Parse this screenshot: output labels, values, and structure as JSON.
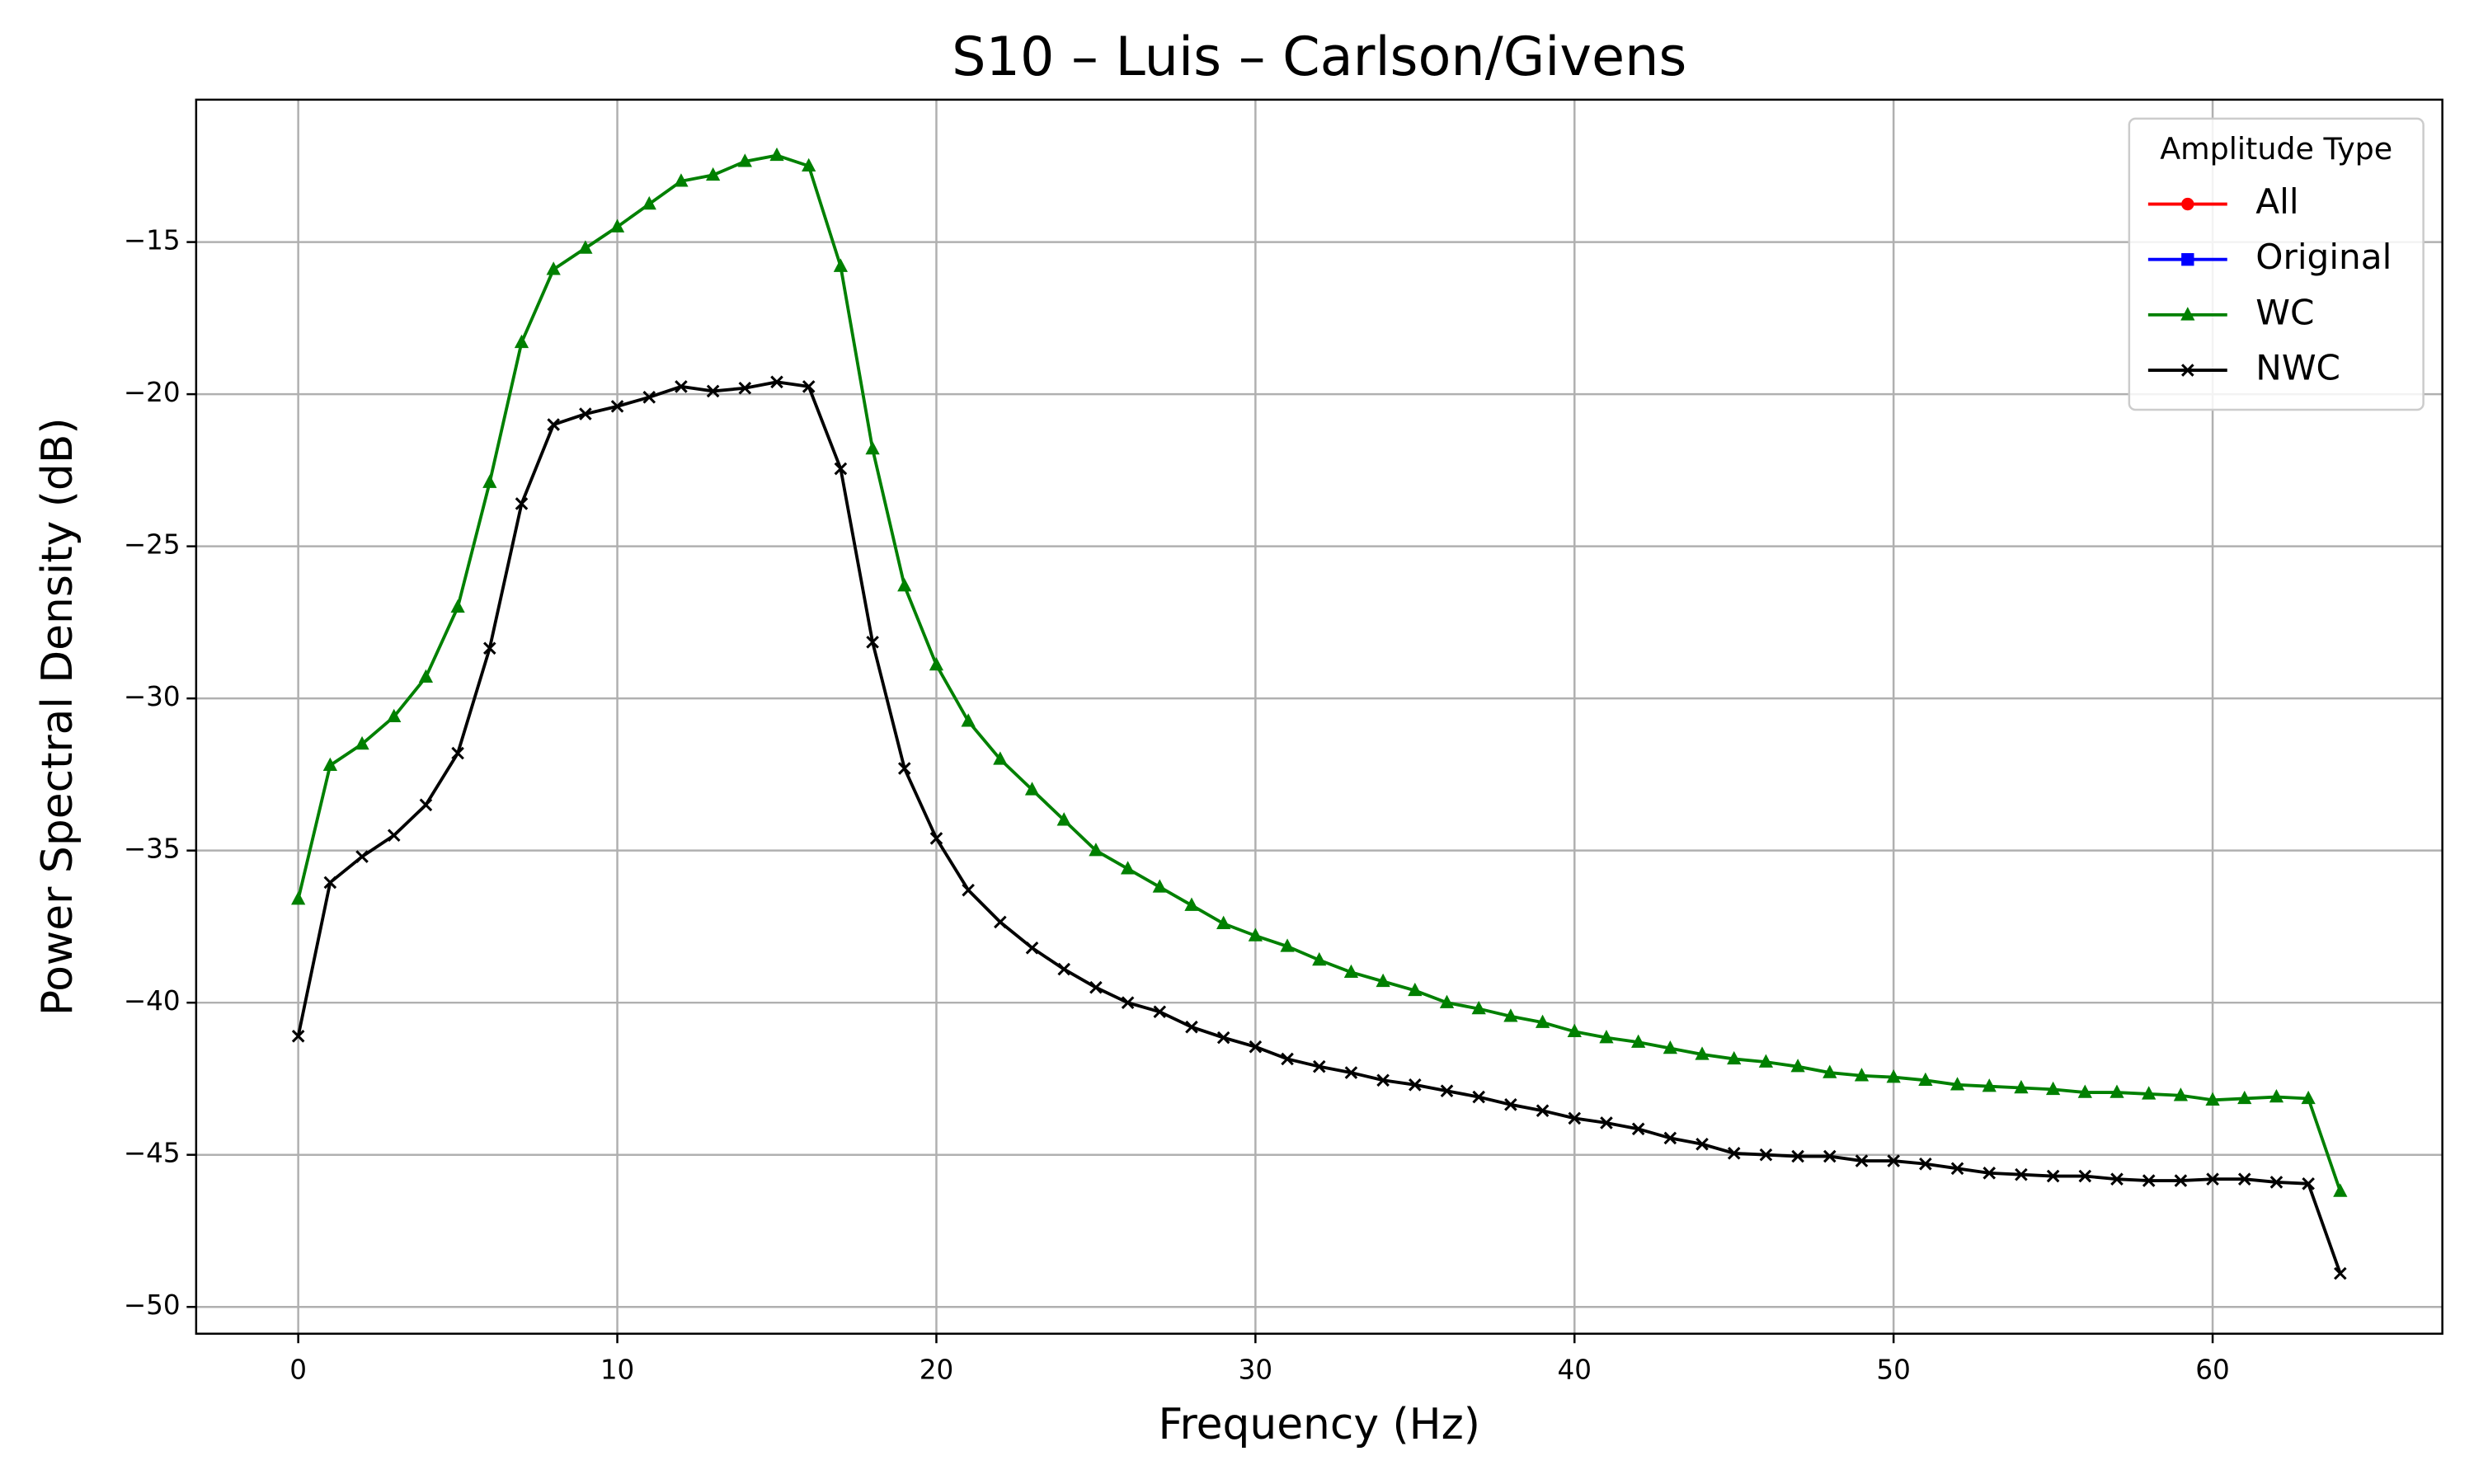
{
  "chart_data": {
    "type": "line",
    "title": "S10 – Luis – Carlson/Givens",
    "xlabel": "Frequency (Hz)",
    "ylabel": "Power Spectral Density (dB)",
    "x": [
      0,
      1,
      2,
      3,
      4,
      5,
      6,
      7,
      8,
      9,
      10,
      11,
      12,
      13,
      14,
      15,
      16,
      17,
      18,
      19,
      20,
      21,
      22,
      23,
      24,
      25,
      26,
      27,
      28,
      29,
      30,
      31,
      32,
      33,
      34,
      35,
      36,
      37,
      38,
      39,
      40,
      41,
      42,
      43,
      44,
      45,
      46,
      47,
      48,
      49,
      50,
      51,
      52,
      53,
      54,
      55,
      56,
      57,
      58,
      59,
      60,
      61,
      62,
      63,
      64
    ],
    "series": [
      {
        "name": "All",
        "color": "#ff0000",
        "marker": "circle",
        "values": [
          null,
          null,
          null,
          null,
          null,
          null,
          null,
          null,
          null,
          null,
          null,
          null,
          null,
          null,
          null,
          null,
          null,
          null,
          null,
          null,
          null,
          null,
          null,
          null,
          null,
          null,
          null,
          null,
          null,
          null,
          null,
          null,
          null,
          null,
          null,
          null,
          null,
          null,
          null,
          null,
          null,
          null,
          null,
          null,
          null,
          null,
          null,
          null,
          null,
          null,
          null,
          null,
          null,
          null,
          null,
          null,
          null,
          null,
          null,
          null,
          null,
          null,
          null,
          null,
          null
        ]
      },
      {
        "name": "Original",
        "color": "#0000ff",
        "marker": "square",
        "values": [
          null,
          null,
          null,
          null,
          null,
          null,
          null,
          null,
          null,
          null,
          null,
          null,
          null,
          null,
          null,
          null,
          null,
          null,
          null,
          null,
          null,
          null,
          null,
          null,
          null,
          null,
          null,
          null,
          null,
          null,
          null,
          null,
          null,
          null,
          null,
          null,
          null,
          null,
          null,
          null,
          null,
          null,
          null,
          null,
          null,
          null,
          null,
          null,
          null,
          null,
          null,
          null,
          null,
          null,
          null,
          null,
          null,
          null,
          null,
          null,
          null,
          null,
          null,
          null,
          null
        ]
      },
      {
        "name": "WC",
        "color": "#008000",
        "marker": "triangle",
        "values": [
          -36.6,
          -32.2,
          -31.5,
          -30.6,
          -29.3,
          -27.0,
          -22.9,
          -18.3,
          -15.9,
          -15.2,
          -14.5,
          -13.75,
          -13.0,
          -12.8,
          -12.35,
          -12.15,
          -12.5,
          -15.8,
          -21.8,
          -26.3,
          -28.9,
          -30.75,
          -32.0,
          -33.0,
          -34.0,
          -35.0,
          -35.6,
          -36.2,
          -36.8,
          -37.4,
          -37.8,
          -38.15,
          -38.6,
          -39.0,
          -39.3,
          -39.6,
          -40.0,
          -40.2,
          -40.45,
          -40.65,
          -40.95,
          -41.15,
          -41.3,
          -41.5,
          -41.7,
          -41.85,
          -41.95,
          -42.1,
          -42.3,
          -42.4,
          -42.45,
          -42.55,
          -42.7,
          -42.75,
          -42.8,
          -42.85,
          -42.95,
          -42.95,
          -43.0,
          -43.05,
          -43.2,
          -43.15,
          -43.1,
          -43.15,
          -46.2
        ]
      },
      {
        "name": "NWC",
        "color": "#000000",
        "marker": "x",
        "values": [
          -41.1,
          -36.05,
          -35.2,
          -34.5,
          -33.5,
          -31.8,
          -28.35,
          -23.6,
          -21.0,
          -20.65,
          -20.4,
          -20.1,
          -19.75,
          -19.9,
          -19.8,
          -19.6,
          -19.75,
          -22.45,
          -28.15,
          -32.3,
          -34.6,
          -36.3,
          -37.35,
          -38.2,
          -38.9,
          -39.5,
          -40.0,
          -40.3,
          -40.8,
          -41.15,
          -41.45,
          -41.85,
          -42.1,
          -42.3,
          -42.55,
          -42.7,
          -42.9,
          -43.1,
          -43.35,
          -43.55,
          -43.8,
          -43.95,
          -44.15,
          -44.45,
          -44.65,
          -44.95,
          -45.0,
          -45.05,
          -45.05,
          -45.2,
          -45.2,
          -45.3,
          -45.45,
          -45.6,
          -45.65,
          -45.7,
          -45.7,
          -45.8,
          -45.85,
          -45.85,
          -45.8,
          -45.8,
          -45.9,
          -45.95,
          -48.9
        ]
      }
    ],
    "legend_title": "Amplitude Type",
    "legend": "upper right",
    "grid": true,
    "xlim": [
      -3.2,
      67.2
    ],
    "ylim": [
      -50.88,
      -10.32
    ],
    "xticks": [
      0,
      10,
      20,
      30,
      40,
      50,
      60
    ],
    "yticks": [
      {
        "value": -50,
        "label": "−50"
      },
      {
        "value": -45,
        "label": "−45"
      },
      {
        "value": -40,
        "label": "−40"
      },
      {
        "value": -35,
        "label": "−35"
      },
      {
        "value": -30,
        "label": "−30"
      },
      {
        "value": -25,
        "label": "−25"
      },
      {
        "value": -20,
        "label": "−20"
      },
      {
        "value": -15,
        "label": "−15"
      }
    ]
  }
}
